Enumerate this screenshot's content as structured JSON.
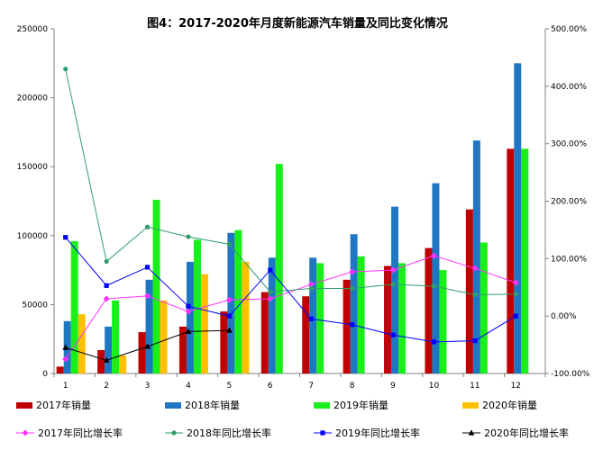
{
  "chart_data": {
    "type": "bar",
    "title": "图4：2017-2020年月度新能源汽车销量及同比变化情况",
    "categories": [
      "1",
      "2",
      "3",
      "4",
      "5",
      "6",
      "7",
      "8",
      "9",
      "10",
      "11",
      "12"
    ],
    "y_left": {
      "ylim": [
        0,
        250000
      ],
      "ticks": [
        0,
        50000,
        100000,
        150000,
        200000,
        250000
      ],
      "tick_labels": [
        "0",
        "50000",
        "100000",
        "150000",
        "200000",
        "250000"
      ]
    },
    "y_right": {
      "ylim": [
        -100,
        500
      ],
      "ticks": [
        -100,
        0,
        100,
        200,
        300,
        400,
        500
      ],
      "tick_labels": [
        "-100.00%",
        "0.00%",
        "100.00%",
        "200.00%",
        "300.00%",
        "400.00%",
        "500.00%"
      ]
    },
    "bar_series": [
      {
        "name": "2017年销量",
        "color": "#c00000",
        "values": [
          5000,
          17000,
          30000,
          34000,
          45000,
          59000,
          56000,
          68000,
          78000,
          91000,
          119000,
          163000
        ]
      },
      {
        "name": "2018年销量",
        "color": "#1f77c4",
        "values": [
          38000,
          34000,
          68000,
          81000,
          102000,
          84000,
          84000,
          101000,
          121000,
          138000,
          169000,
          225000
        ]
      },
      {
        "name": "2019年销量",
        "color": "#19ef19",
        "values": [
          96000,
          53000,
          126000,
          97000,
          104000,
          152000,
          80000,
          85000,
          80000,
          75000,
          95000,
          163000
        ]
      },
      {
        "name": "2020年销量",
        "color": "#ffc000",
        "values": [
          43000,
          13000,
          53000,
          72000,
          81000,
          null,
          null,
          null,
          null,
          null,
          null,
          null
        ]
      }
    ],
    "line_series": [
      {
        "name": "2017年同比增长率",
        "color": "#ff33ff",
        "marker": "diamond",
        "values": [
          -75,
          30,
          35,
          8,
          28,
          30,
          55,
          77,
          80,
          105,
          83,
          58
        ]
      },
      {
        "name": "2018年同比增长率",
        "color": "#2e9e6e",
        "marker": "circle",
        "values": [
          430,
          95,
          155,
          138,
          125,
          42,
          48,
          48,
          55,
          52,
          37,
          38
        ]
      },
      {
        "name": "2019年同比增长率",
        "color": "#0000ff",
        "marker": "square",
        "values": [
          137,
          53,
          85,
          17,
          0,
          80,
          -5,
          -15,
          -33,
          -45,
          -43,
          0
        ]
      },
      {
        "name": "2020年同比增长率",
        "color": "#000000",
        "marker": "triangle",
        "values": [
          -55,
          -77,
          -53,
          -27,
          -25,
          null,
          null,
          null,
          null,
          null,
          null,
          null
        ]
      }
    ],
    "legend_position": "bottom"
  }
}
